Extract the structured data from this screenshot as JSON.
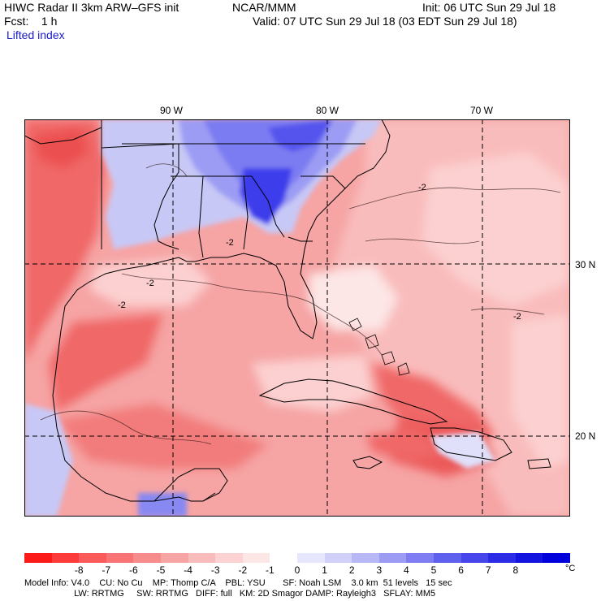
{
  "header": {
    "title_left": "HIWC Radar II 3km ARW–GFS init",
    "org": "NCAR/MMM",
    "init": "Init: 06 UTC Sun 29 Jul 18",
    "fcst": "Fcst:    1 h",
    "valid": "Valid: 07 UTC Sun 29 Jul 18 (03 EDT Sun 29 Jul 18)",
    "field": "Lifted index"
  },
  "map": {
    "lon_labels": [
      "90 W",
      "80 W",
      "70 W"
    ],
    "lat_labels": [
      "30 N",
      "20 N"
    ],
    "contour_labels": [
      "-2",
      "-2",
      "-2",
      "-2",
      "-2"
    ],
    "colors": {
      "ocean_base": "#f6a4a4",
      "deep_red": "#f06868",
      "light_red": "#fcd0d0",
      "pale": "#fde8e8",
      "blue_dark": "#3c3cec",
      "blue_mid": "#7b7bf2",
      "blue_light": "#c8c8f6"
    }
  },
  "colorbar": {
    "colors": [
      "#ff1a1a",
      "#ff3a3a",
      "#fb5a5a",
      "#f87474",
      "#f68c8c",
      "#f6a4a4",
      "#f9bcbc",
      "#fcd2d2",
      "#fde6e6",
      "#ffffff",
      "#e6e6fc",
      "#d0d0f8",
      "#b8b8f6",
      "#9c9cf4",
      "#7e7ef2",
      "#6060ee",
      "#4646ea",
      "#2c2ce6",
      "#1414e0",
      "#0000dc"
    ],
    "ticks": [
      "-8",
      "-7",
      "-6",
      "-5",
      "-4",
      "-3",
      "-2",
      "-1",
      "0",
      "1",
      "2",
      "3",
      "4",
      "5",
      "6",
      "7",
      "8"
    ],
    "unit": "°C"
  },
  "footer": {
    "line1": "Model Info: V4.0    CU: No Cu    MP: Thomp C/A    PBL: YSU       SF: Noah LSM    3.0 km  51 levels   15 sec",
    "line2": "                    LW: RRTMG     SW: RRTMG   DIFF: full   KM: 2D Smagor DAMP: Rayleigh3   SFLAY: MM5"
  }
}
